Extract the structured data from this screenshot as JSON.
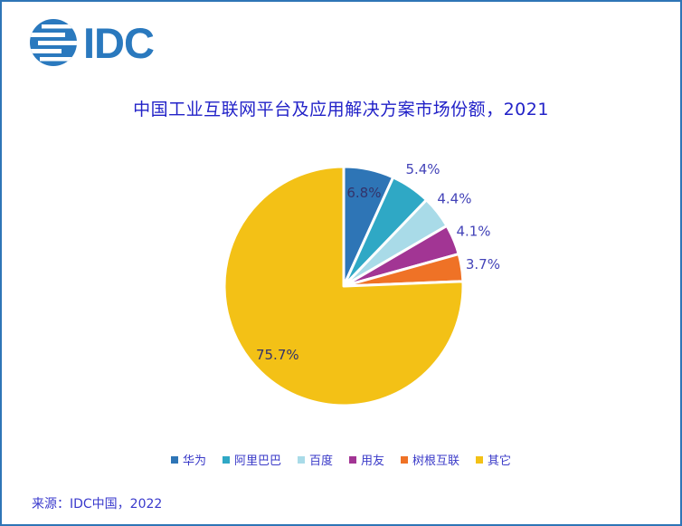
{
  "frame": {
    "border_color": "#2e75b6",
    "background_color": "#ffffff"
  },
  "logo": {
    "text": "IDC",
    "color": "#2a79be",
    "icon": "striped-globe-icon"
  },
  "title": {
    "text": "中国工业互联网平台及应用解决方案市场份额，2021",
    "color": "#2222c8"
  },
  "chart_data": {
    "type": "pie",
    "title": "中国工业互联网平台及应用解决方案市场份额，2021",
    "start_angle_deg": 0,
    "direction": "clockwise",
    "legend_position": "bottom",
    "slices": [
      {
        "label": "华为",
        "value": 6.8,
        "display": "6.8%",
        "color": "#2e75b6"
      },
      {
        "label": "阿里巴巴",
        "value": 5.4,
        "display": "5.4%",
        "color": "#2fa8c5"
      },
      {
        "label": "百度",
        "value": 4.4,
        "display": "4.4%",
        "color": "#a9dbe8"
      },
      {
        "label": "用友",
        "value": 4.1,
        "display": "4.1%",
        "color": "#a23594"
      },
      {
        "label": "树根互联",
        "value": 3.7,
        "display": "3.7%",
        "color": "#ef7226"
      },
      {
        "label": "其它",
        "value": 75.7,
        "display": "75.7%",
        "color": "#f3c116"
      }
    ],
    "label_color_inside": "#33336b",
    "label_color_outside": "#4343b8",
    "slice_gap_color": "#ffffff"
  },
  "source": {
    "text": "来源：IDC中国，2022"
  }
}
